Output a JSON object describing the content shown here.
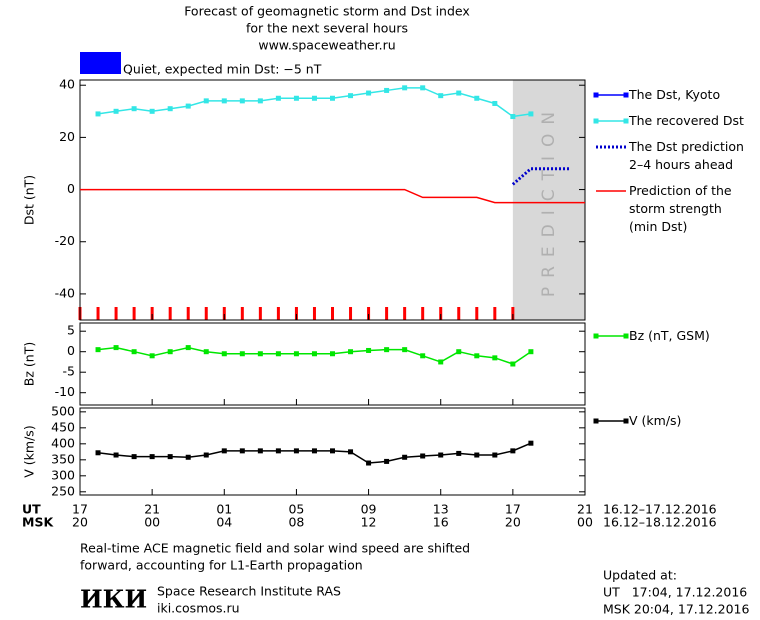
{
  "chart_data": [
    {
      "type": "line",
      "title": [
        "Forecast of geomagnetic storm and Dst index",
        "for the next several hours",
        "www.spaceweather.ru"
      ],
      "status": {
        "text": "Quiet, expected min Dst: −5 nT",
        "color": "#0000ff"
      },
      "ylabel": "Dst (nT)",
      "xlim": [
        0,
        28
      ],
      "ylim": [
        -50,
        42
      ],
      "yticks": [
        -40,
        -20,
        0,
        20,
        40
      ],
      "shaded_region": {
        "x": [
          24,
          28
        ],
        "label": "PREDICTION",
        "color": "#d8d8d8"
      },
      "series": [
        {
          "name": "The Dst, Kyoto",
          "color": "#0000ff",
          "marker": "square",
          "style": "solid",
          "x": [],
          "values": []
        },
        {
          "name": "The recovered Dst",
          "color": "#33e6e6",
          "marker": "square",
          "style": "solid",
          "x": [
            1,
            2,
            3,
            4,
            5,
            6,
            7,
            8,
            9,
            10,
            11,
            12,
            13,
            14,
            15,
            16,
            17,
            18,
            19,
            20,
            21,
            22,
            23,
            24,
            25
          ],
          "values": [
            29,
            30,
            31,
            30,
            31,
            32,
            34,
            34,
            34,
            34,
            35,
            35,
            35,
            35,
            36,
            37,
            38,
            39,
            39,
            36,
            37,
            35,
            33,
            28,
            29
          ]
        },
        {
          "name": "The Dst prediction\n2–4 hours ahead",
          "color": "#0000cc",
          "marker": "none",
          "style": "dotted",
          "x": [
            24,
            25,
            27.2
          ],
          "values": [
            2,
            8,
            8
          ]
        },
        {
          "name": "Prediction of the\nstorm strength\n(min Dst)",
          "color": "#ff0000",
          "marker": "none",
          "style": "solid",
          "x": [
            0,
            18,
            19,
            22,
            23,
            28
          ],
          "values": [
            0,
            0,
            -3,
            -3,
            -5,
            -5
          ]
        }
      ]
    },
    {
      "type": "line",
      "ylabel": "Bz (nT)",
      "xlim": [
        0,
        28
      ],
      "ylim": [
        -13,
        7
      ],
      "yticks": [
        -10,
        -5,
        0,
        5
      ],
      "series": [
        {
          "name": "Bz (nT, GSM)",
          "color": "#00e600",
          "marker": "square",
          "style": "solid",
          "x": [
            1,
            2,
            3,
            4,
            5,
            6,
            7,
            8,
            9,
            10,
            11,
            12,
            13,
            14,
            15,
            16,
            17,
            18,
            19,
            20,
            21,
            22,
            23,
            24,
            25
          ],
          "values": [
            0.5,
            1,
            0,
            -1,
            0,
            1,
            0,
            -0.5,
            -0.5,
            -0.5,
            -0.5,
            -0.5,
            -0.5,
            -0.5,
            0,
            0.3,
            0.5,
            0.5,
            -1,
            -2.5,
            0,
            -1,
            -1.5,
            -3,
            0
          ]
        }
      ]
    },
    {
      "type": "line",
      "ylabel": "V (km/s)",
      "xlim": [
        0,
        28
      ],
      "ylim": [
        240,
        512
      ],
      "yticks": [
        250,
        300,
        350,
        400,
        450,
        500
      ],
      "series": [
        {
          "name": "V (km/s)",
          "color": "#000000",
          "marker": "square",
          "style": "solid",
          "x": [
            1,
            2,
            3,
            4,
            5,
            6,
            7,
            8,
            9,
            10,
            11,
            12,
            13,
            14,
            15,
            16,
            17,
            18,
            19,
            20,
            21,
            22,
            23,
            24,
            25
          ],
          "values": [
            372,
            365,
            360,
            360,
            360,
            358,
            365,
            378,
            378,
            378,
            378,
            378,
            378,
            378,
            375,
            340,
            345,
            358,
            362,
            365,
            370,
            365,
            365,
            378,
            402
          ]
        }
      ],
      "x_rows": [
        {
          "label": "UT",
          "dates": "16.12–17.12.2016",
          "ticks": [
            {
              "value": 0,
              "label": "17"
            },
            {
              "value": 4,
              "label": "21"
            },
            {
              "value": 8,
              "label": "01"
            },
            {
              "value": 12,
              "label": "05"
            },
            {
              "value": 16,
              "label": "09"
            },
            {
              "value": 20,
              "label": "13"
            },
            {
              "value": 24,
              "label": "17"
            },
            {
              "value": 28,
              "label": "21"
            }
          ]
        },
        {
          "label": "MSK",
          "dates": "16.12–18.12.2016",
          "ticks": [
            {
              "value": 0,
              "label": "20"
            },
            {
              "value": 4,
              "label": "00"
            },
            {
              "value": 8,
              "label": "04"
            },
            {
              "value": 12,
              "label": "08"
            },
            {
              "value": 16,
              "label": "12"
            },
            {
              "value": 20,
              "label": "16"
            },
            {
              "value": 24,
              "label": "20"
            },
            {
              "value": 28,
              "label": "00"
            }
          ]
        }
      ]
    }
  ],
  "footer": {
    "note": [
      "Real-time ACE magnetic field and solar wind speed are shifted",
      "forward, accounting for L1-Earth propagation"
    ],
    "logo": "ИКИ",
    "institute": "Space Research Institute RAS",
    "site": "iki.cosmos.ru",
    "updated": [
      "Updated at:",
      "UT   17:04, 17.12.2016",
      "MSK 20:04, 17.12.2016"
    ]
  }
}
